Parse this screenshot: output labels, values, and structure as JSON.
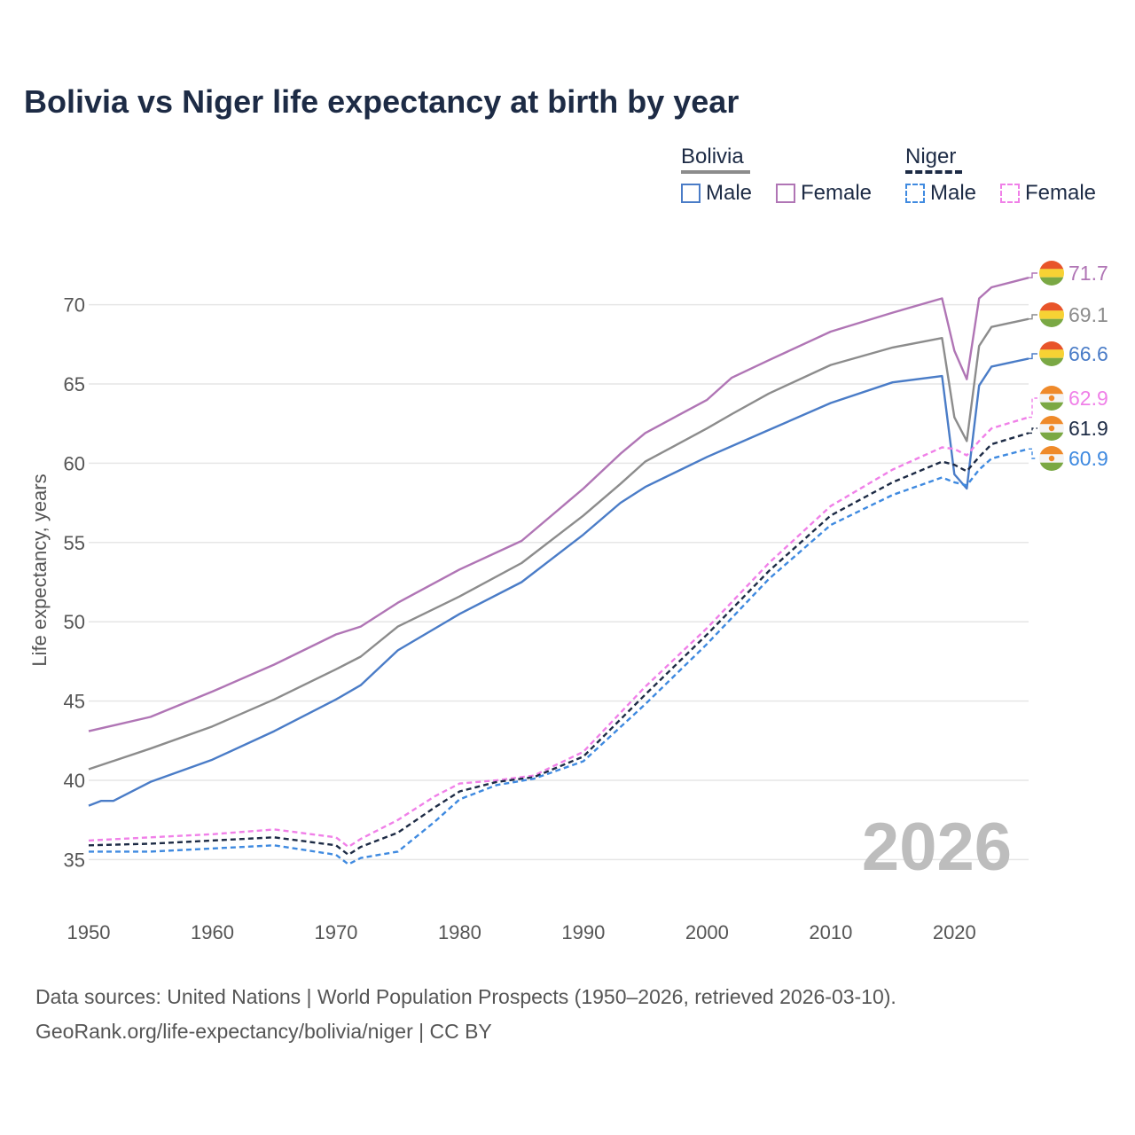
{
  "title": "Bolivia vs Niger life expectancy at birth by year",
  "watermark_year": "2026",
  "legend": {
    "bolivia": {
      "title": "Bolivia",
      "male": "Male",
      "female": "Female"
    },
    "niger": {
      "title": "Niger",
      "male": "Male",
      "female": "Female"
    }
  },
  "footer": {
    "line1": "Data sources: United Nations | World Population Prospects (1950–2026, retrieved 2026-03-10).",
    "line2": "GeoRank.org/life-expectancy/bolivia/niger | CC BY"
  },
  "colors": {
    "bolivia_male": "#4a7cc7",
    "bolivia_female": "#b075b5",
    "bolivia_total": "#8c8c8c",
    "niger_male": "#3f8ae0",
    "niger_female": "#f080e8",
    "niger_total": "#1d2b45",
    "grid": "#e6e6e6",
    "flag_bolivia": [
      "#e8542a",
      "#f7d234",
      "#7aa844"
    ],
    "flag_niger": [
      "#ef8a2a",
      "#f4f4f4",
      "#7aa844"
    ]
  },
  "chart_data": {
    "type": "line",
    "title": "Bolivia vs Niger life expectancy at birth by year",
    "xlabel": "",
    "ylabel": "Life expectancy, years",
    "xlim": [
      1950,
      2026
    ],
    "ylim": [
      32,
      73
    ],
    "x_ticks": [
      "1950",
      "1960",
      "1970",
      "1980",
      "1990",
      "2000",
      "2010",
      "2020"
    ],
    "y_ticks": [
      "35",
      "40",
      "45",
      "50",
      "55",
      "60",
      "65",
      "70"
    ],
    "grid": true,
    "series": [
      {
        "name": "Bolivia Female",
        "country": "bolivia",
        "dash": false,
        "color_key": "bolivia_female",
        "end_label": "71.7",
        "points": [
          [
            1950,
            43.1
          ],
          [
            1955,
            44.0
          ],
          [
            1960,
            45.6
          ],
          [
            1965,
            47.3
          ],
          [
            1970,
            49.2
          ],
          [
            1972,
            49.7
          ],
          [
            1975,
            51.2
          ],
          [
            1980,
            53.3
          ],
          [
            1985,
            55.1
          ],
          [
            1990,
            58.4
          ],
          [
            1993,
            60.6
          ],
          [
            1995,
            61.9
          ],
          [
            2000,
            64.0
          ],
          [
            2002,
            65.4
          ],
          [
            2005,
            66.5
          ],
          [
            2010,
            68.3
          ],
          [
            2015,
            69.5
          ],
          [
            2019,
            70.4
          ],
          [
            2020,
            67.1
          ],
          [
            2021,
            65.3
          ],
          [
            2022,
            70.4
          ],
          [
            2023,
            71.1
          ],
          [
            2026,
            71.7
          ]
        ]
      },
      {
        "name": "Bolivia Total",
        "country": "bolivia",
        "dash": false,
        "color_key": "bolivia_total",
        "end_label": "69.1",
        "points": [
          [
            1950,
            40.7
          ],
          [
            1955,
            42.0
          ],
          [
            1960,
            43.4
          ],
          [
            1965,
            45.1
          ],
          [
            1970,
            47.0
          ],
          [
            1972,
            47.8
          ],
          [
            1975,
            49.7
          ],
          [
            1980,
            51.6
          ],
          [
            1985,
            53.7
          ],
          [
            1990,
            56.7
          ],
          [
            1993,
            58.7
          ],
          [
            1995,
            60.1
          ],
          [
            2000,
            62.2
          ],
          [
            2002,
            63.1
          ],
          [
            2005,
            64.4
          ],
          [
            2010,
            66.2
          ],
          [
            2015,
            67.3
          ],
          [
            2019,
            67.9
          ],
          [
            2020,
            62.9
          ],
          [
            2021,
            61.4
          ],
          [
            2022,
            67.4
          ],
          [
            2023,
            68.6
          ],
          [
            2026,
            69.1
          ]
        ]
      },
      {
        "name": "Bolivia Male",
        "country": "bolivia",
        "dash": false,
        "color_key": "bolivia_male",
        "end_label": "66.6",
        "points": [
          [
            1950,
            38.4
          ],
          [
            1951,
            38.7
          ],
          [
            1952,
            38.7
          ],
          [
            1955,
            39.9
          ],
          [
            1960,
            41.3
          ],
          [
            1965,
            43.1
          ],
          [
            1970,
            45.1
          ],
          [
            1972,
            46.0
          ],
          [
            1975,
            48.2
          ],
          [
            1980,
            50.5
          ],
          [
            1985,
            52.5
          ],
          [
            1990,
            55.5
          ],
          [
            1993,
            57.5
          ],
          [
            1995,
            58.5
          ],
          [
            2000,
            60.4
          ],
          [
            2005,
            62.1
          ],
          [
            2010,
            63.8
          ],
          [
            2015,
            65.1
          ],
          [
            2019,
            65.5
          ],
          [
            2020,
            59.3
          ],
          [
            2021,
            58.4
          ],
          [
            2022,
            64.9
          ],
          [
            2023,
            66.1
          ],
          [
            2026,
            66.6
          ]
        ]
      },
      {
        "name": "Niger Female",
        "country": "niger",
        "dash": true,
        "color_key": "niger_female",
        "end_label": "62.9",
        "points": [
          [
            1950,
            36.2
          ],
          [
            1955,
            36.4
          ],
          [
            1960,
            36.6
          ],
          [
            1965,
            36.9
          ],
          [
            1970,
            36.4
          ],
          [
            1971,
            35.8
          ],
          [
            1972,
            36.3
          ],
          [
            1975,
            37.5
          ],
          [
            1978,
            39.0
          ],
          [
            1980,
            39.8
          ],
          [
            1983,
            40.0
          ],
          [
            1986,
            40.3
          ],
          [
            1990,
            41.8
          ],
          [
            1995,
            45.9
          ],
          [
            2000,
            49.6
          ],
          [
            2005,
            53.7
          ],
          [
            2010,
            57.3
          ],
          [
            2015,
            59.6
          ],
          [
            2019,
            61.0
          ],
          [
            2020,
            60.9
          ],
          [
            2021,
            60.5
          ],
          [
            2022,
            61.4
          ],
          [
            2023,
            62.2
          ],
          [
            2026,
            62.9
          ]
        ]
      },
      {
        "name": "Niger Total",
        "country": "niger",
        "dash": true,
        "color_key": "niger_total",
        "end_label": "61.9",
        "points": [
          [
            1950,
            35.9
          ],
          [
            1955,
            36.0
          ],
          [
            1960,
            36.2
          ],
          [
            1965,
            36.4
          ],
          [
            1970,
            35.9
          ],
          [
            1971,
            35.3
          ],
          [
            1972,
            35.8
          ],
          [
            1975,
            36.7
          ],
          [
            1978,
            38.3
          ],
          [
            1980,
            39.3
          ],
          [
            1983,
            39.9
          ],
          [
            1986,
            40.2
          ],
          [
            1990,
            41.5
          ],
          [
            1995,
            45.4
          ],
          [
            2000,
            49.2
          ],
          [
            2005,
            53.2
          ],
          [
            2010,
            56.7
          ],
          [
            2015,
            58.8
          ],
          [
            2019,
            60.1
          ],
          [
            2020,
            59.9
          ],
          [
            2021,
            59.5
          ],
          [
            2022,
            60.4
          ],
          [
            2023,
            61.2
          ],
          [
            2026,
            61.9
          ]
        ]
      },
      {
        "name": "Niger Male",
        "country": "niger",
        "dash": true,
        "color_key": "niger_male",
        "end_label": "60.9",
        "points": [
          [
            1950,
            35.5
          ],
          [
            1955,
            35.5
          ],
          [
            1960,
            35.7
          ],
          [
            1965,
            35.9
          ],
          [
            1970,
            35.3
          ],
          [
            1971,
            34.7
          ],
          [
            1972,
            35.1
          ],
          [
            1975,
            35.5
          ],
          [
            1978,
            37.4
          ],
          [
            1980,
            38.8
          ],
          [
            1983,
            39.7
          ],
          [
            1986,
            40.1
          ],
          [
            1990,
            41.2
          ],
          [
            1995,
            44.8
          ],
          [
            2000,
            48.6
          ],
          [
            2005,
            52.7
          ],
          [
            2010,
            56.1
          ],
          [
            2015,
            58.0
          ],
          [
            2019,
            59.1
          ],
          [
            2020,
            58.8
          ],
          [
            2021,
            58.6
          ],
          [
            2022,
            59.6
          ],
          [
            2023,
            60.3
          ],
          [
            2026,
            60.9
          ]
        ]
      }
    ]
  }
}
